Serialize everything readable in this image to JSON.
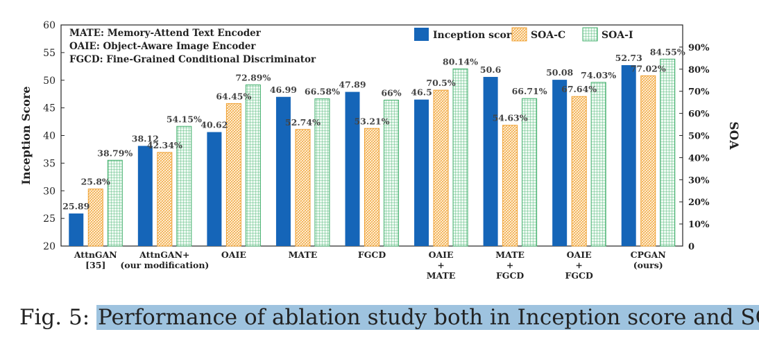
{
  "chart_data": {
    "type": "bar",
    "title": "",
    "ylabel": "Inception Score",
    "y2label": "SOA",
    "ylim": [
      20,
      60
    ],
    "y2lim": [
      0,
      100
    ],
    "yticks": [
      "20",
      "25",
      "30",
      "35",
      "40",
      "45",
      "50",
      "55",
      "60"
    ],
    "y2ticks": [
      "0",
      "10%",
      "20%",
      "30%",
      "40%",
      "50%",
      "60%",
      "70%",
      "80%",
      "90%"
    ],
    "categories": [
      [
        "AttnGAN",
        "[35]"
      ],
      [
        "AttnGAN+",
        "(our modification)"
      ],
      [
        "OAIE"
      ],
      [
        "MATE"
      ],
      [
        "FGCD"
      ],
      [
        "OAIE",
        "+",
        "MATE"
      ],
      [
        "MATE",
        "+",
        "FGCD"
      ],
      [
        "OAIE",
        "+",
        "FGCD"
      ],
      [
        "CPGAN",
        "(ours)"
      ]
    ],
    "series": [
      {
        "name": "Inception score",
        "axis": "left",
        "pattern": "solid",
        "color": "#1565b8",
        "values": [
          25.89,
          38.12,
          40.62,
          46.99,
          47.89,
          46.5,
          50.6,
          50.08,
          52.73
        ],
        "labels": [
          "25.89",
          "38.12",
          "40.62",
          "46.99",
          "47.89",
          "46.5",
          "50.6",
          "50.08",
          "52.73"
        ]
      },
      {
        "name": "SOA-C",
        "axis": "right",
        "pattern": "hatch",
        "color": "#f0a030",
        "values": [
          25.8,
          42.34,
          64.45,
          52.74,
          53.21,
          70.5,
          54.63,
          67.64,
          77.02
        ],
        "labels": [
          "25.8%",
          "42.34%",
          "64.45%",
          "52.74%",
          "53.21%",
          "70.5%",
          "54.63%",
          "67.64%",
          "77.02%"
        ]
      },
      {
        "name": "SOA-I",
        "axis": "right",
        "pattern": "grid",
        "color": "#3fae6a",
        "values": [
          38.79,
          54.15,
          72.89,
          66.58,
          66,
          80.14,
          66.71,
          74.03,
          84.55
        ],
        "labels": [
          "38.79%",
          "54.15%",
          "72.89%",
          "66.58%",
          "66%",
          "80.14%",
          "66.71%",
          "74.03%",
          "84.55%"
        ]
      }
    ],
    "annotations": [
      "MATE: Memory-Attend Text Encoder",
      "OAIE: Object-Aware Image Encoder",
      "FGCD: Fine-Grained Conditional Discriminator"
    ],
    "legend_position": "top-right"
  },
  "caption": {
    "prefix": "Fig. 5:",
    "text": "Performance of ablation study both in Inception score and SOA."
  }
}
